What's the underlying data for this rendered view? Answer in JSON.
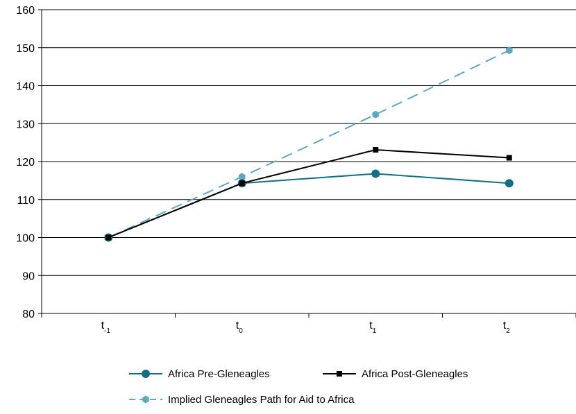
{
  "chart_data": {
    "type": "line",
    "categories": [
      {
        "base": "t",
        "sub": "-1"
      },
      {
        "base": "t",
        "sub": "0"
      },
      {
        "base": "t",
        "sub": "1"
      },
      {
        "base": "t",
        "sub": "2"
      }
    ],
    "ylim": [
      80,
      160
    ],
    "yticks": [
      80,
      90,
      100,
      110,
      120,
      130,
      140,
      150,
      160
    ],
    "grid": true,
    "legend_position": "bottom",
    "series": [
      {
        "name": "Africa Pre-Gleneagles",
        "values": [
          100,
          114.3,
          116.8,
          114.3
        ],
        "color": "#0e6f86",
        "line": "solid",
        "marker": "circle"
      },
      {
        "name": "Africa Post-Gleneagles",
        "values": [
          100,
          114.3,
          123.1,
          121.0
        ],
        "color": "#000000",
        "line": "solid",
        "marker": "square"
      },
      {
        "name": "Implied Gleneagles Path for Aid to Africa",
        "values": [
          100,
          116.0,
          132.4,
          149.3
        ],
        "color": "#5aa9c0",
        "line": "dashed",
        "marker": "hexagon"
      }
    ]
  }
}
